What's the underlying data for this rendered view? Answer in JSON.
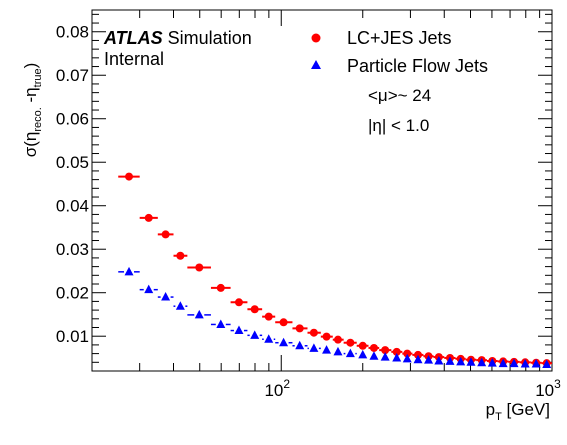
{
  "chart_data": {
    "type": "scatter",
    "xscale": "log",
    "xlim": [
      20,
      1000
    ],
    "ylim": [
      0.002,
      0.085
    ],
    "x_major_ticks": [
      {
        "value": 100,
        "base": "10",
        "exp": "2"
      },
      {
        "value": 1000,
        "base": "10",
        "exp": "3"
      }
    ],
    "y_ticks": [
      0.01,
      0.02,
      0.03,
      0.04,
      0.05,
      0.06,
      0.07,
      0.08
    ],
    "y_tick_labels": [
      "0.01",
      "0.02",
      "0.03",
      "0.04",
      "0.05",
      "0.06",
      "0.07",
      "0.08"
    ],
    "xlabel": {
      "base": "p",
      "sub": "T",
      "unit": " [GeV]"
    },
    "ylabel": {
      "pre": "σ(η",
      "sub1": "reco.",
      "mid": " -η",
      "sub2": "true",
      "post": ")"
    },
    "atlas_label": {
      "bold": "ATLAS",
      "rest": "Simulation",
      "line2": "Internal"
    },
    "legend_placement": "top-right",
    "annotations": [
      "<μ>~ 24",
      "|η| < 1.0"
    ],
    "series": [
      {
        "name": "LC+JES Jets",
        "marker": "circle",
        "color": "#ff0000",
        "points": [
          {
            "xlo": 25,
            "xhi": 30,
            "x": 27.4,
            "y": 0.0467
          },
          {
            "xlo": 30,
            "xhi": 35,
            "x": 32.4,
            "y": 0.0372
          },
          {
            "xlo": 35,
            "xhi": 40,
            "x": 37.4,
            "y": 0.0334
          },
          {
            "xlo": 40,
            "xhi": 45,
            "x": 42.4,
            "y": 0.0285
          },
          {
            "xlo": 45,
            "xhi": 55,
            "x": 49.8,
            "y": 0.0258
          },
          {
            "xlo": 55,
            "xhi": 65,
            "x": 59.8,
            "y": 0.0211
          },
          {
            "xlo": 65,
            "xhi": 75,
            "x": 69.8,
            "y": 0.0178
          },
          {
            "xlo": 75,
            "xhi": 85,
            "x": 79.8,
            "y": 0.0162
          },
          {
            "xlo": 85,
            "xhi": 95,
            "x": 89.9,
            "y": 0.0145
          },
          {
            "xlo": 95,
            "xhi": 110,
            "x": 102,
            "y": 0.0132
          },
          {
            "xlo": 110,
            "xhi": 125,
            "x": 117,
            "y": 0.0118
          },
          {
            "xlo": 125,
            "xhi": 140,
            "x": 132,
            "y": 0.0108
          },
          {
            "xlo": 140,
            "xhi": 155,
            "x": 147,
            "y": 0.0099
          },
          {
            "xlo": 155,
            "xhi": 170,
            "x": 162,
            "y": 0.0092
          },
          {
            "xlo": 170,
            "xhi": 190,
            "x": 180,
            "y": 0.0085
          },
          {
            "xlo": 190,
            "xhi": 210,
            "x": 200,
            "y": 0.0078
          },
          {
            "xlo": 210,
            "xhi": 230,
            "x": 220,
            "y": 0.0073
          },
          {
            "xlo": 230,
            "xhi": 255,
            "x": 242,
            "y": 0.0068
          },
          {
            "xlo": 255,
            "xhi": 280,
            "x": 267,
            "y": 0.0064
          },
          {
            "xlo": 280,
            "xhi": 305,
            "x": 292,
            "y": 0.006
          },
          {
            "xlo": 305,
            "xhi": 335,
            "x": 320,
            "y": 0.0057
          },
          {
            "xlo": 335,
            "xhi": 365,
            "x": 350,
            "y": 0.0054
          },
          {
            "xlo": 365,
            "xhi": 400,
            "x": 382,
            "y": 0.0052
          },
          {
            "xlo": 400,
            "xhi": 440,
            "x": 420,
            "y": 0.005
          },
          {
            "xlo": 440,
            "xhi": 480,
            "x": 460,
            "y": 0.0048
          },
          {
            "xlo": 480,
            "xhi": 525,
            "x": 502,
            "y": 0.0046
          },
          {
            "xlo": 525,
            "xhi": 575,
            "x": 550,
            "y": 0.0045
          },
          {
            "xlo": 575,
            "xhi": 630,
            "x": 602,
            "y": 0.0043
          },
          {
            "xlo": 630,
            "xhi": 690,
            "x": 660,
            "y": 0.0042
          },
          {
            "xlo": 690,
            "xhi": 760,
            "x": 724,
            "y": 0.0041
          },
          {
            "xlo": 760,
            "xhi": 835,
            "x": 796,
            "y": 0.004
          },
          {
            "xlo": 835,
            "xhi": 915,
            "x": 874,
            "y": 0.0039
          },
          {
            "xlo": 915,
            "xhi": 1000,
            "x": 956,
            "y": 0.0038
          }
        ]
      },
      {
        "name": "Particle Flow Jets",
        "marker": "triangle",
        "color": "#0000ff",
        "points": [
          {
            "xlo": 25,
            "xhi": 30,
            "x": 27.4,
            "y": 0.0248
          },
          {
            "xlo": 30,
            "xhi": 35,
            "x": 32.4,
            "y": 0.0207
          },
          {
            "xlo": 35,
            "xhi": 40,
            "x": 37.4,
            "y": 0.019
          },
          {
            "xlo": 40,
            "xhi": 45,
            "x": 42.4,
            "y": 0.0169
          },
          {
            "xlo": 45,
            "xhi": 55,
            "x": 49.8,
            "y": 0.0149
          },
          {
            "xlo": 55,
            "xhi": 65,
            "x": 59.8,
            "y": 0.0127
          },
          {
            "xlo": 65,
            "xhi": 75,
            "x": 69.8,
            "y": 0.0113
          },
          {
            "xlo": 75,
            "xhi": 85,
            "x": 79.8,
            "y": 0.0102
          },
          {
            "xlo": 85,
            "xhi": 95,
            "x": 89.9,
            "y": 0.0093
          },
          {
            "xlo": 95,
            "xhi": 110,
            "x": 102,
            "y": 0.0085
          },
          {
            "xlo": 110,
            "xhi": 125,
            "x": 117,
            "y": 0.0078
          },
          {
            "xlo": 125,
            "xhi": 140,
            "x": 132,
            "y": 0.0072
          },
          {
            "xlo": 140,
            "xhi": 155,
            "x": 147,
            "y": 0.0068
          },
          {
            "xlo": 155,
            "xhi": 170,
            "x": 162,
            "y": 0.0064
          },
          {
            "xlo": 170,
            "xhi": 190,
            "x": 180,
            "y": 0.006
          },
          {
            "xlo": 190,
            "xhi": 210,
            "x": 200,
            "y": 0.0057
          },
          {
            "xlo": 210,
            "xhi": 230,
            "x": 220,
            "y": 0.0054
          },
          {
            "xlo": 230,
            "xhi": 255,
            "x": 242,
            "y": 0.0052
          },
          {
            "xlo": 255,
            "xhi": 280,
            "x": 267,
            "y": 0.005
          },
          {
            "xlo": 280,
            "xhi": 305,
            "x": 292,
            "y": 0.0048
          },
          {
            "xlo": 305,
            "xhi": 335,
            "x": 320,
            "y": 0.0046
          },
          {
            "xlo": 335,
            "xhi": 365,
            "x": 350,
            "y": 0.0045
          },
          {
            "xlo": 365,
            "xhi": 400,
            "x": 382,
            "y": 0.0043
          },
          {
            "xlo": 400,
            "xhi": 440,
            "x": 420,
            "y": 0.0042
          },
          {
            "xlo": 440,
            "xhi": 480,
            "x": 460,
            "y": 0.0041
          },
          {
            "xlo": 480,
            "xhi": 525,
            "x": 502,
            "y": 0.004
          },
          {
            "xlo": 525,
            "xhi": 575,
            "x": 550,
            "y": 0.0039
          },
          {
            "xlo": 575,
            "xhi": 630,
            "x": 602,
            "y": 0.0038
          },
          {
            "xlo": 630,
            "xhi": 690,
            "x": 660,
            "y": 0.0037
          },
          {
            "xlo": 690,
            "xhi": 760,
            "x": 724,
            "y": 0.0037
          },
          {
            "xlo": 760,
            "xhi": 835,
            "x": 796,
            "y": 0.0036
          },
          {
            "xlo": 835,
            "xhi": 915,
            "x": 874,
            "y": 0.0036
          },
          {
            "xlo": 915,
            "xhi": 1000,
            "x": 956,
            "y": 0.0035
          }
        ]
      }
    ]
  }
}
